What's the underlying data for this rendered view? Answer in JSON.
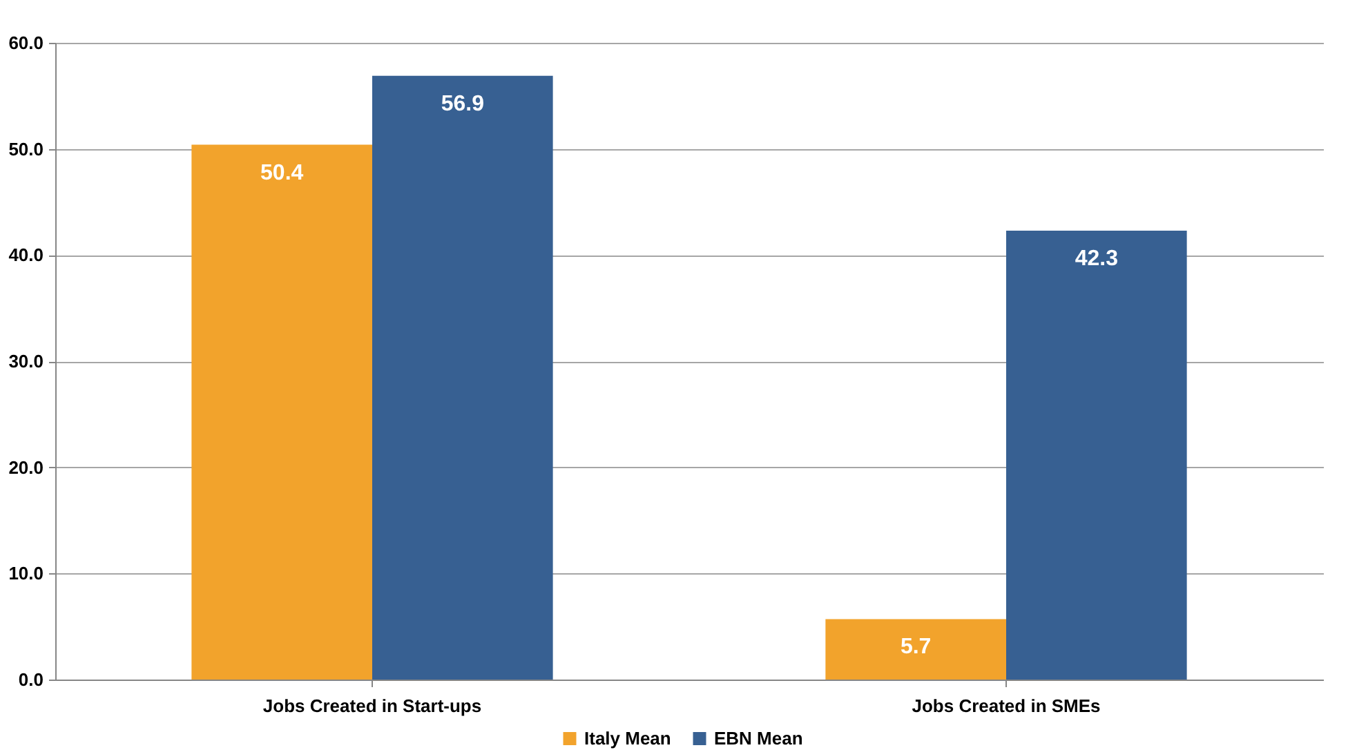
{
  "chart_data": {
    "type": "bar",
    "categories": [
      "Jobs Created in Start-ups",
      "Jobs Created in SMEs"
    ],
    "series": [
      {
        "name": "Italy Mean",
        "color": "#f2a32c",
        "values": [
          50.4,
          5.7
        ]
      },
      {
        "name": "EBN Mean",
        "color": "#376092",
        "values": [
          56.9,
          42.3
        ]
      }
    ],
    "ylim": [
      0,
      60
    ],
    "yticks": [
      {
        "value": 0,
        "label": "0.0"
      },
      {
        "value": 10,
        "label": "10.0"
      },
      {
        "value": 20,
        "label": "20.0"
      },
      {
        "value": 30,
        "label": "30.0"
      },
      {
        "value": 40,
        "label": "40.0"
      },
      {
        "value": 50,
        "label": "50.0"
      },
      {
        "value": 60,
        "label": "60.0"
      }
    ],
    "grid": "y",
    "legend": "bottom",
    "data_labels": true
  }
}
